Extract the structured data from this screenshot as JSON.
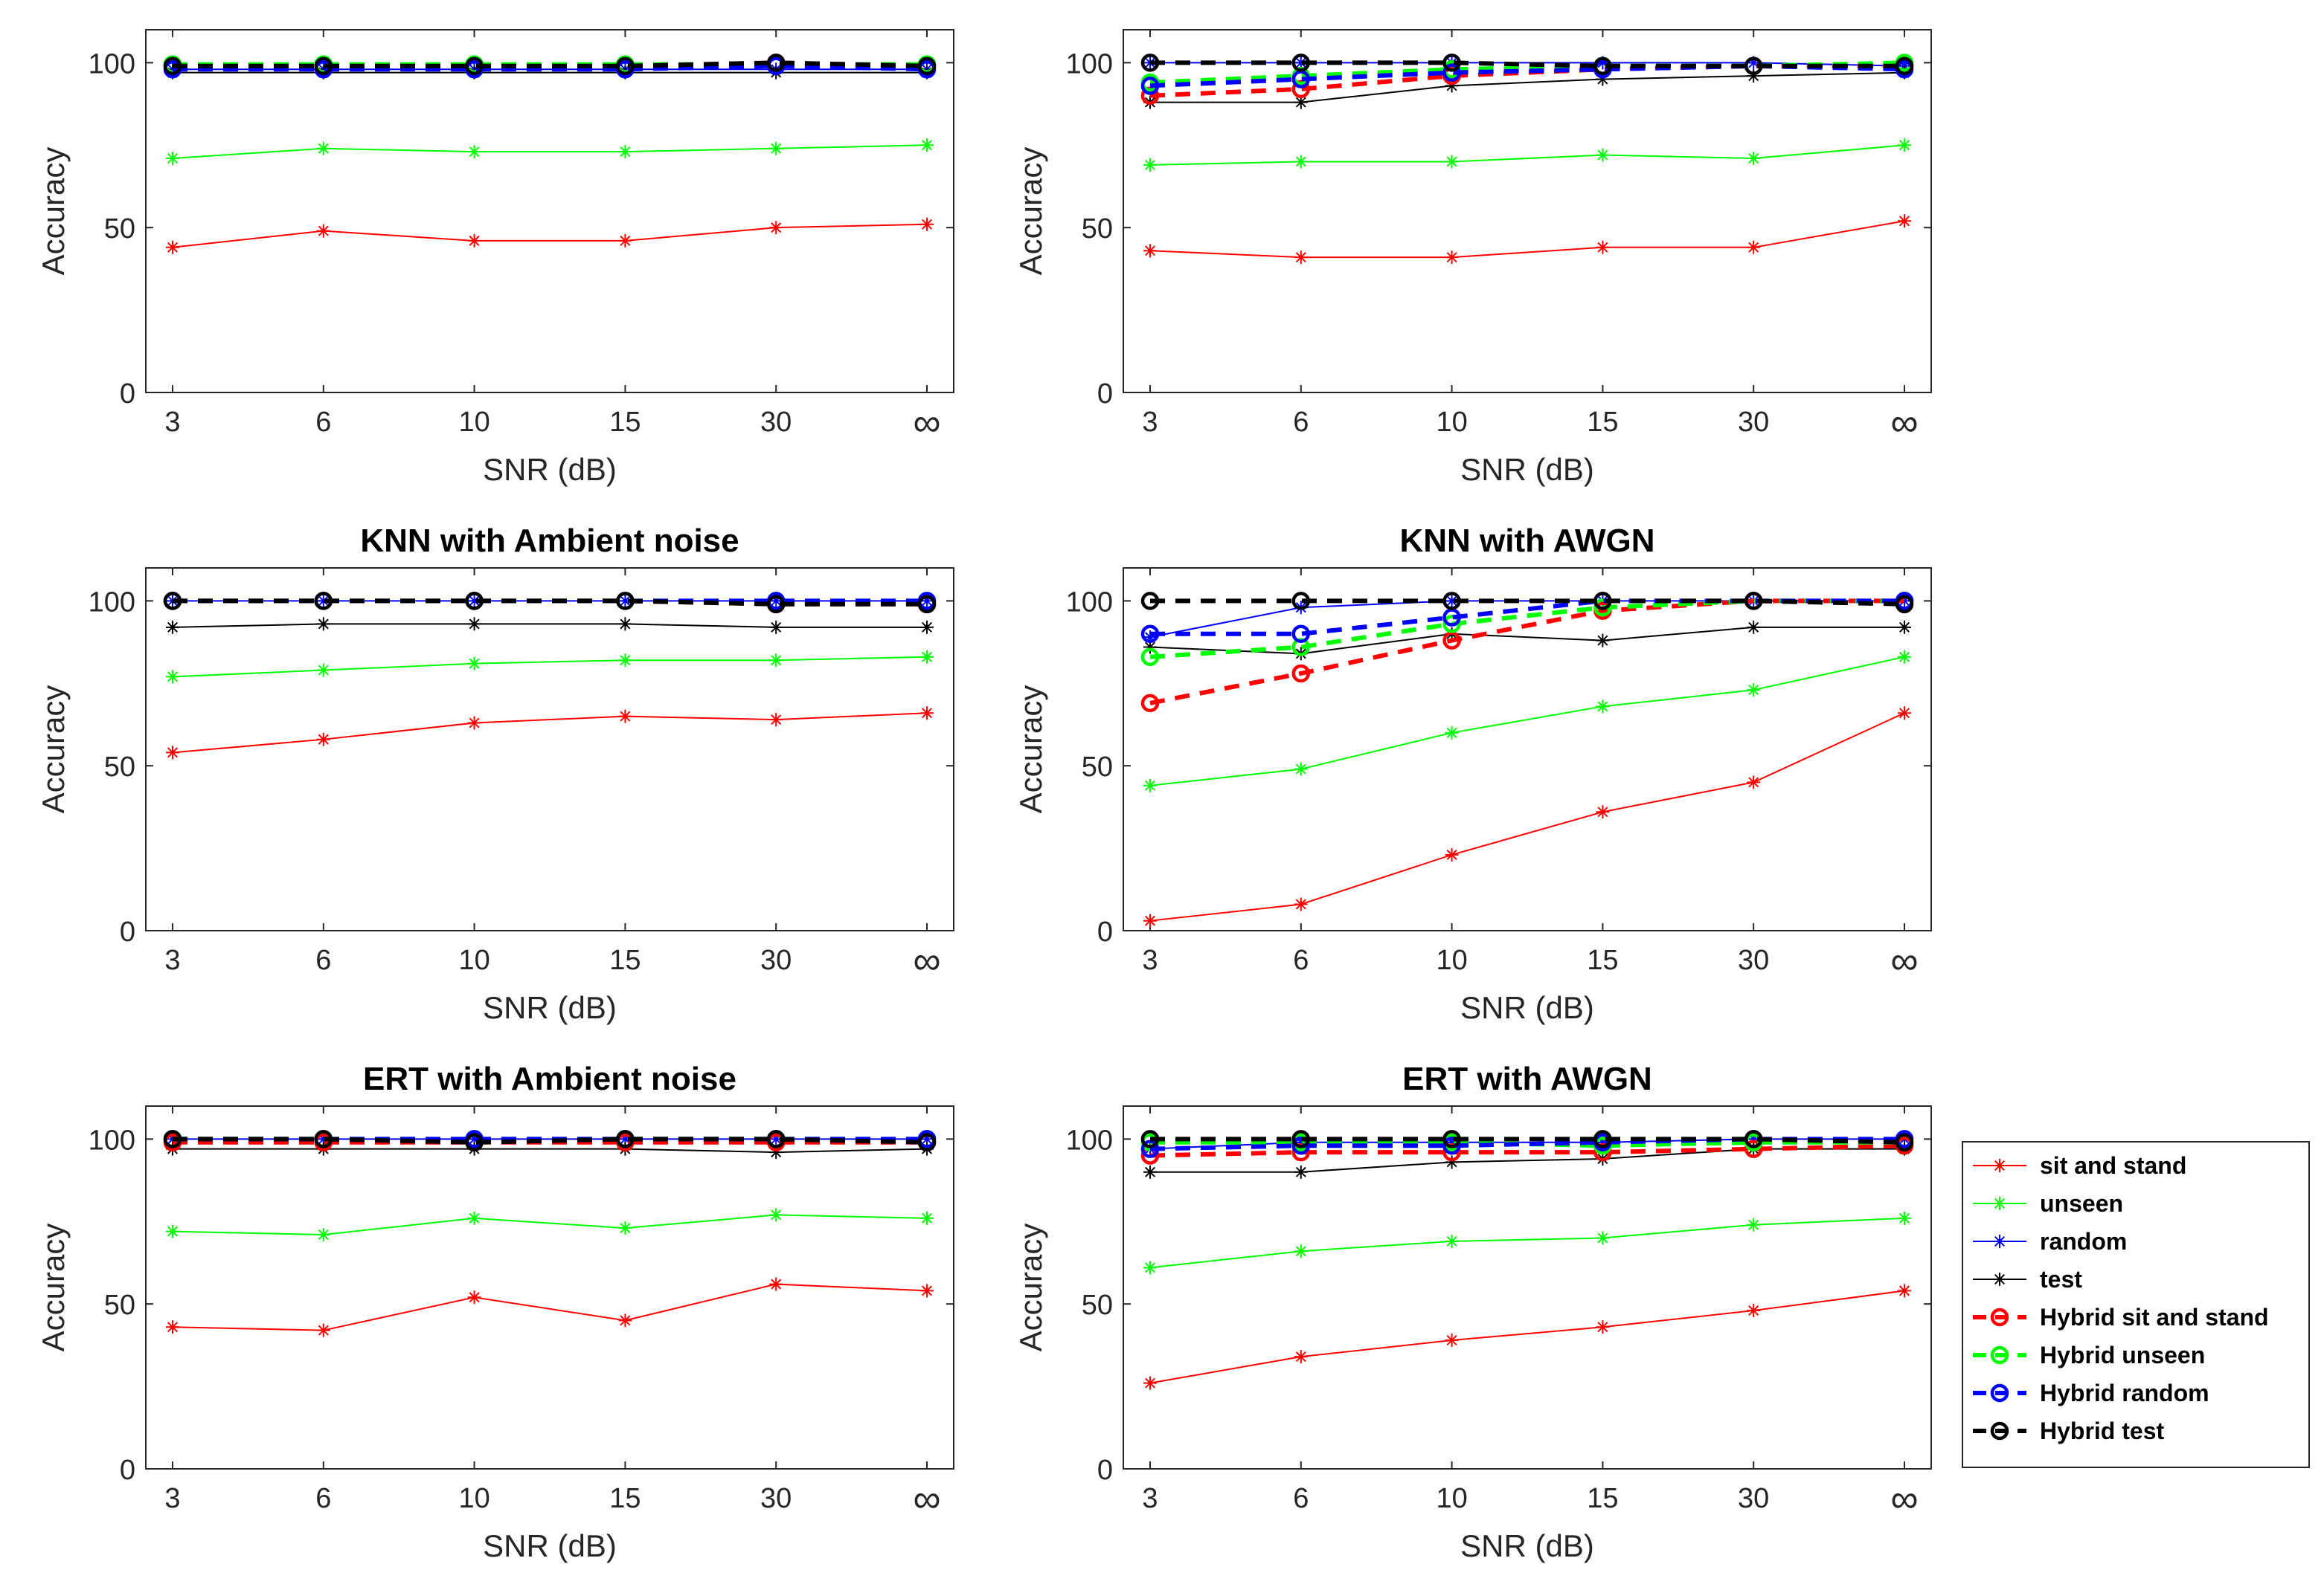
{
  "figure": {
    "series_styles": {
      "sit and stand": {
        "color": "#ff0000"
      },
      "unseen": {
        "color": "#00ff00"
      },
      "random": {
        "color": "#0000ff"
      },
      "test": {
        "color": "#000000"
      },
      "Hybrid sit and stand": {
        "color": "#ff0000"
      },
      "Hybrid unseen": {
        "color": "#00ff00"
      },
      "Hybrid random": {
        "color": "#0000ff"
      },
      "Hybrid test": {
        "color": "#000000"
      }
    },
    "legend": {
      "entries": [
        "sit and stand",
        "unseen",
        "random",
        "test",
        "Hybrid sit and stand",
        "Hybrid unseen",
        "Hybrid random",
        "Hybrid test"
      ],
      "placement": "right of bottom-right panel"
    }
  },
  "chart_data": [
    {
      "type": "line",
      "title": "",
      "xlabel": "SNR (dB)",
      "ylabel": "Accuracy",
      "categories": [
        "3",
        "6",
        "10",
        "15",
        "30",
        "∞"
      ],
      "ylim": [
        0,
        110
      ],
      "yticks": [
        0,
        50,
        100
      ],
      "series": [
        {
          "name": "sit and stand",
          "values": [
            44,
            49,
            46,
            46,
            50,
            51
          ]
        },
        {
          "name": "unseen",
          "values": [
            71,
            74,
            73,
            73,
            74,
            75
          ]
        },
        {
          "name": "random",
          "values": [
            98,
            98,
            98,
            98,
            98,
            98
          ]
        },
        {
          "name": "test",
          "values": [
            97,
            97,
            97,
            97,
            97,
            97
          ]
        },
        {
          "name": "Hybrid sit and stand",
          "values": [
            99,
            99,
            99,
            99,
            100,
            99
          ]
        },
        {
          "name": "Hybrid unseen",
          "values": [
            99.5,
            99.5,
            99.5,
            99.5,
            99.5,
            99.5
          ]
        },
        {
          "name": "Hybrid random",
          "values": [
            98,
            98,
            98,
            98,
            99,
            98
          ]
        },
        {
          "name": "Hybrid test",
          "values": [
            99,
            99,
            99,
            99,
            100,
            99
          ]
        }
      ]
    },
    {
      "type": "line",
      "title": "",
      "xlabel": "SNR (dB)",
      "ylabel": "Accuracy",
      "categories": [
        "3",
        "6",
        "10",
        "15",
        "30",
        "∞"
      ],
      "ylim": [
        0,
        110
      ],
      "yticks": [
        0,
        50,
        100
      ],
      "series": [
        {
          "name": "sit and stand",
          "values": [
            43,
            41,
            41,
            44,
            44,
            52
          ]
        },
        {
          "name": "unseen",
          "values": [
            69,
            70,
            70,
            72,
            71,
            75
          ]
        },
        {
          "name": "random",
          "values": [
            100,
            100,
            100,
            100,
            100,
            99
          ]
        },
        {
          "name": "test",
          "values": [
            88,
            88,
            93,
            95,
            96,
            97
          ]
        },
        {
          "name": "Hybrid sit and stand",
          "values": [
            90,
            92,
            96,
            98,
            99,
            99
          ]
        },
        {
          "name": "Hybrid unseen",
          "values": [
            94,
            96,
            98,
            99,
            99,
            100
          ]
        },
        {
          "name": "Hybrid random",
          "values": [
            93,
            95,
            97,
            98,
            99,
            98
          ]
        },
        {
          "name": "Hybrid test",
          "values": [
            100,
            100,
            100,
            99,
            99,
            99
          ]
        }
      ]
    },
    {
      "type": "line",
      "title": "KNN with Ambient noise",
      "xlabel": "SNR (dB)",
      "ylabel": "Accuracy",
      "categories": [
        "3",
        "6",
        "10",
        "15",
        "30",
        "∞"
      ],
      "ylim": [
        0,
        110
      ],
      "yticks": [
        0,
        50,
        100
      ],
      "series": [
        {
          "name": "sit and stand",
          "values": [
            54,
            58,
            63,
            65,
            64,
            66
          ]
        },
        {
          "name": "unseen",
          "values": [
            77,
            79,
            81,
            82,
            82,
            83
          ]
        },
        {
          "name": "random",
          "values": [
            100,
            100,
            100,
            100,
            100,
            100
          ]
        },
        {
          "name": "test",
          "values": [
            92,
            93,
            93,
            93,
            92,
            92
          ]
        },
        {
          "name": "Hybrid sit and stand",
          "values": [
            100,
            100,
            100,
            100,
            99,
            99
          ]
        },
        {
          "name": "Hybrid unseen",
          "values": [
            100,
            100,
            100,
            100,
            100,
            100
          ]
        },
        {
          "name": "Hybrid random",
          "values": [
            100,
            100,
            100,
            100,
            100,
            100
          ]
        },
        {
          "name": "Hybrid test",
          "values": [
            100,
            100,
            100,
            100,
            99,
            99
          ]
        }
      ]
    },
    {
      "type": "line",
      "title": "KNN with AWGN",
      "xlabel": "SNR (dB)",
      "ylabel": "Accuracy",
      "categories": [
        "3",
        "6",
        "10",
        "15",
        "30",
        "∞"
      ],
      "ylim": [
        0,
        110
      ],
      "yticks": [
        0,
        50,
        100
      ],
      "series": [
        {
          "name": "sit and stand",
          "values": [
            3,
            8,
            23,
            36,
            45,
            66
          ]
        },
        {
          "name": "unseen",
          "values": [
            44,
            49,
            60,
            68,
            73,
            83
          ]
        },
        {
          "name": "random",
          "values": [
            89,
            98,
            100,
            100,
            100,
            100
          ]
        },
        {
          "name": "test",
          "values": [
            86,
            84,
            90,
            88,
            92,
            92
          ]
        },
        {
          "name": "Hybrid sit and stand",
          "values": [
            69,
            78,
            88,
            97,
            100,
            100
          ]
        },
        {
          "name": "Hybrid unseen",
          "values": [
            83,
            86,
            93,
            98,
            100,
            100
          ]
        },
        {
          "name": "Hybrid random",
          "values": [
            90,
            90,
            95,
            100,
            100,
            100
          ]
        },
        {
          "name": "Hybrid test",
          "values": [
            100,
            100,
            100,
            100,
            100,
            99
          ]
        }
      ]
    },
    {
      "type": "line",
      "title": "ERT with Ambient noise",
      "xlabel": "SNR (dB)",
      "ylabel": "Accuracy",
      "categories": [
        "3",
        "6",
        "10",
        "15",
        "30",
        "∞"
      ],
      "ylim": [
        0,
        110
      ],
      "yticks": [
        0,
        50,
        100
      ],
      "series": [
        {
          "name": "sit and stand",
          "values": [
            43,
            42,
            52,
            45,
            56,
            54
          ]
        },
        {
          "name": "unseen",
          "values": [
            72,
            71,
            76,
            73,
            77,
            76
          ]
        },
        {
          "name": "random",
          "values": [
            100,
            100,
            100,
            100,
            100,
            100
          ]
        },
        {
          "name": "test",
          "values": [
            97,
            97,
            97,
            97,
            96,
            97
          ]
        },
        {
          "name": "Hybrid sit and stand",
          "values": [
            99,
            99,
            99,
            99,
            99,
            99
          ]
        },
        {
          "name": "Hybrid unseen",
          "values": [
            100,
            100,
            100,
            100,
            100,
            100
          ]
        },
        {
          "name": "Hybrid random",
          "values": [
            100,
            100,
            100,
            100,
            100,
            100
          ]
        },
        {
          "name": "Hybrid test",
          "values": [
            100,
            100,
            99,
            100,
            100,
            99
          ]
        }
      ]
    },
    {
      "type": "line",
      "title": "ERT with AWGN",
      "xlabel": "SNR (dB)",
      "ylabel": "Accuracy",
      "categories": [
        "3",
        "6",
        "10",
        "15",
        "30",
        "∞"
      ],
      "ylim": [
        0,
        110
      ],
      "yticks": [
        0,
        50,
        100
      ],
      "series": [
        {
          "name": "sit and stand",
          "values": [
            26,
            34,
            39,
            43,
            48,
            54
          ]
        },
        {
          "name": "unseen",
          "values": [
            61,
            66,
            69,
            70,
            74,
            76
          ]
        },
        {
          "name": "random",
          "values": [
            97,
            99,
            99,
            99,
            100,
            100
          ]
        },
        {
          "name": "test",
          "values": [
            90,
            90,
            93,
            94,
            97,
            97
          ]
        },
        {
          "name": "Hybrid sit and stand",
          "values": [
            95,
            96,
            96,
            96,
            97,
            98
          ]
        },
        {
          "name": "Hybrid unseen",
          "values": [
            99,
            99,
            99,
            98,
            99,
            99
          ]
        },
        {
          "name": "Hybrid random",
          "values": [
            97,
            98,
            98,
            99,
            100,
            100
          ]
        },
        {
          "name": "Hybrid test",
          "values": [
            100,
            100,
            100,
            100,
            100,
            99
          ]
        }
      ]
    }
  ]
}
